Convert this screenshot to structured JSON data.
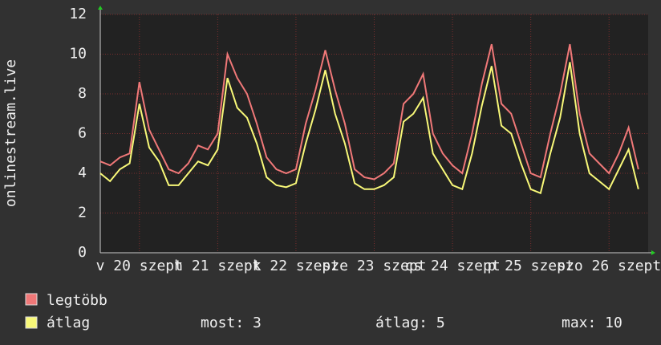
{
  "chart_data": {
    "type": "line",
    "ylabel": "onlinestream.live",
    "x": [
      0,
      3,
      6,
      9,
      12,
      15,
      18,
      21,
      24,
      27,
      30,
      33,
      36,
      39,
      42,
      45,
      48,
      51,
      54,
      57,
      60,
      63,
      66,
      69,
      72,
      75,
      78,
      81,
      84,
      87,
      90,
      93,
      96,
      99,
      102,
      105,
      108,
      111,
      114,
      117,
      120,
      123,
      126,
      129,
      132,
      135,
      138,
      141,
      144,
      147,
      150,
      153,
      156,
      159,
      162,
      165
    ],
    "xlim": [
      0,
      168
    ],
    "xticks": [
      {
        "value": 12,
        "label": "v 20 szept"
      },
      {
        "value": 36,
        "label": "h 21 szept"
      },
      {
        "value": 60,
        "label": "k 22 szept"
      },
      {
        "value": 84,
        "label": "sze 23 szept"
      },
      {
        "value": 108,
        "label": "cs 24 szept"
      },
      {
        "value": 132,
        "label": "p 25 szept"
      },
      {
        "value": 156,
        "label": "szo 26 szept"
      }
    ],
    "ylim": [
      0,
      12
    ],
    "yticks": [
      0,
      2,
      4,
      6,
      8,
      10,
      12
    ],
    "grid": true,
    "series": [
      {
        "name": "legtöbb",
        "color": "#f07878",
        "values": [
          4.6,
          4.4,
          4.8,
          5.0,
          8.6,
          6.2,
          5.2,
          4.2,
          4.0,
          4.5,
          5.4,
          5.2,
          6.0,
          10.0,
          8.8,
          8.0,
          6.5,
          4.8,
          4.2,
          4.0,
          4.2,
          6.5,
          8.2,
          10.2,
          8.2,
          6.5,
          4.2,
          3.8,
          3.7,
          4.0,
          4.5,
          7.5,
          8.0,
          9.0,
          6.0,
          5.0,
          4.4,
          4.0,
          6.0,
          8.5,
          10.5,
          7.5,
          7.0,
          5.5,
          4.0,
          3.8,
          6.0,
          8.0,
          10.5,
          7.0,
          5.0,
          4.5,
          4.0,
          5.0,
          6.3,
          4.2
        ]
      },
      {
        "name": "átlag",
        "color": "#f8f878",
        "values": [
          4.0,
          3.6,
          4.2,
          4.5,
          7.5,
          5.3,
          4.6,
          3.4,
          3.4,
          4.0,
          4.6,
          4.4,
          5.2,
          8.8,
          7.3,
          6.8,
          5.5,
          3.8,
          3.4,
          3.3,
          3.5,
          5.5,
          7.2,
          9.2,
          7.0,
          5.5,
          3.5,
          3.2,
          3.2,
          3.4,
          3.8,
          6.6,
          7.0,
          7.8,
          5.0,
          4.2,
          3.4,
          3.2,
          5.0,
          7.4,
          9.4,
          6.4,
          6.0,
          4.5,
          3.2,
          3.0,
          5.0,
          6.8,
          9.6,
          6.0,
          4.0,
          3.6,
          3.2,
          4.2,
          5.2,
          3.2
        ]
      }
    ],
    "legend": "bottom-left",
    "stats": {
      "now": "most: 3",
      "avg": "átlag: 5",
      "max": "max: 10"
    }
  }
}
